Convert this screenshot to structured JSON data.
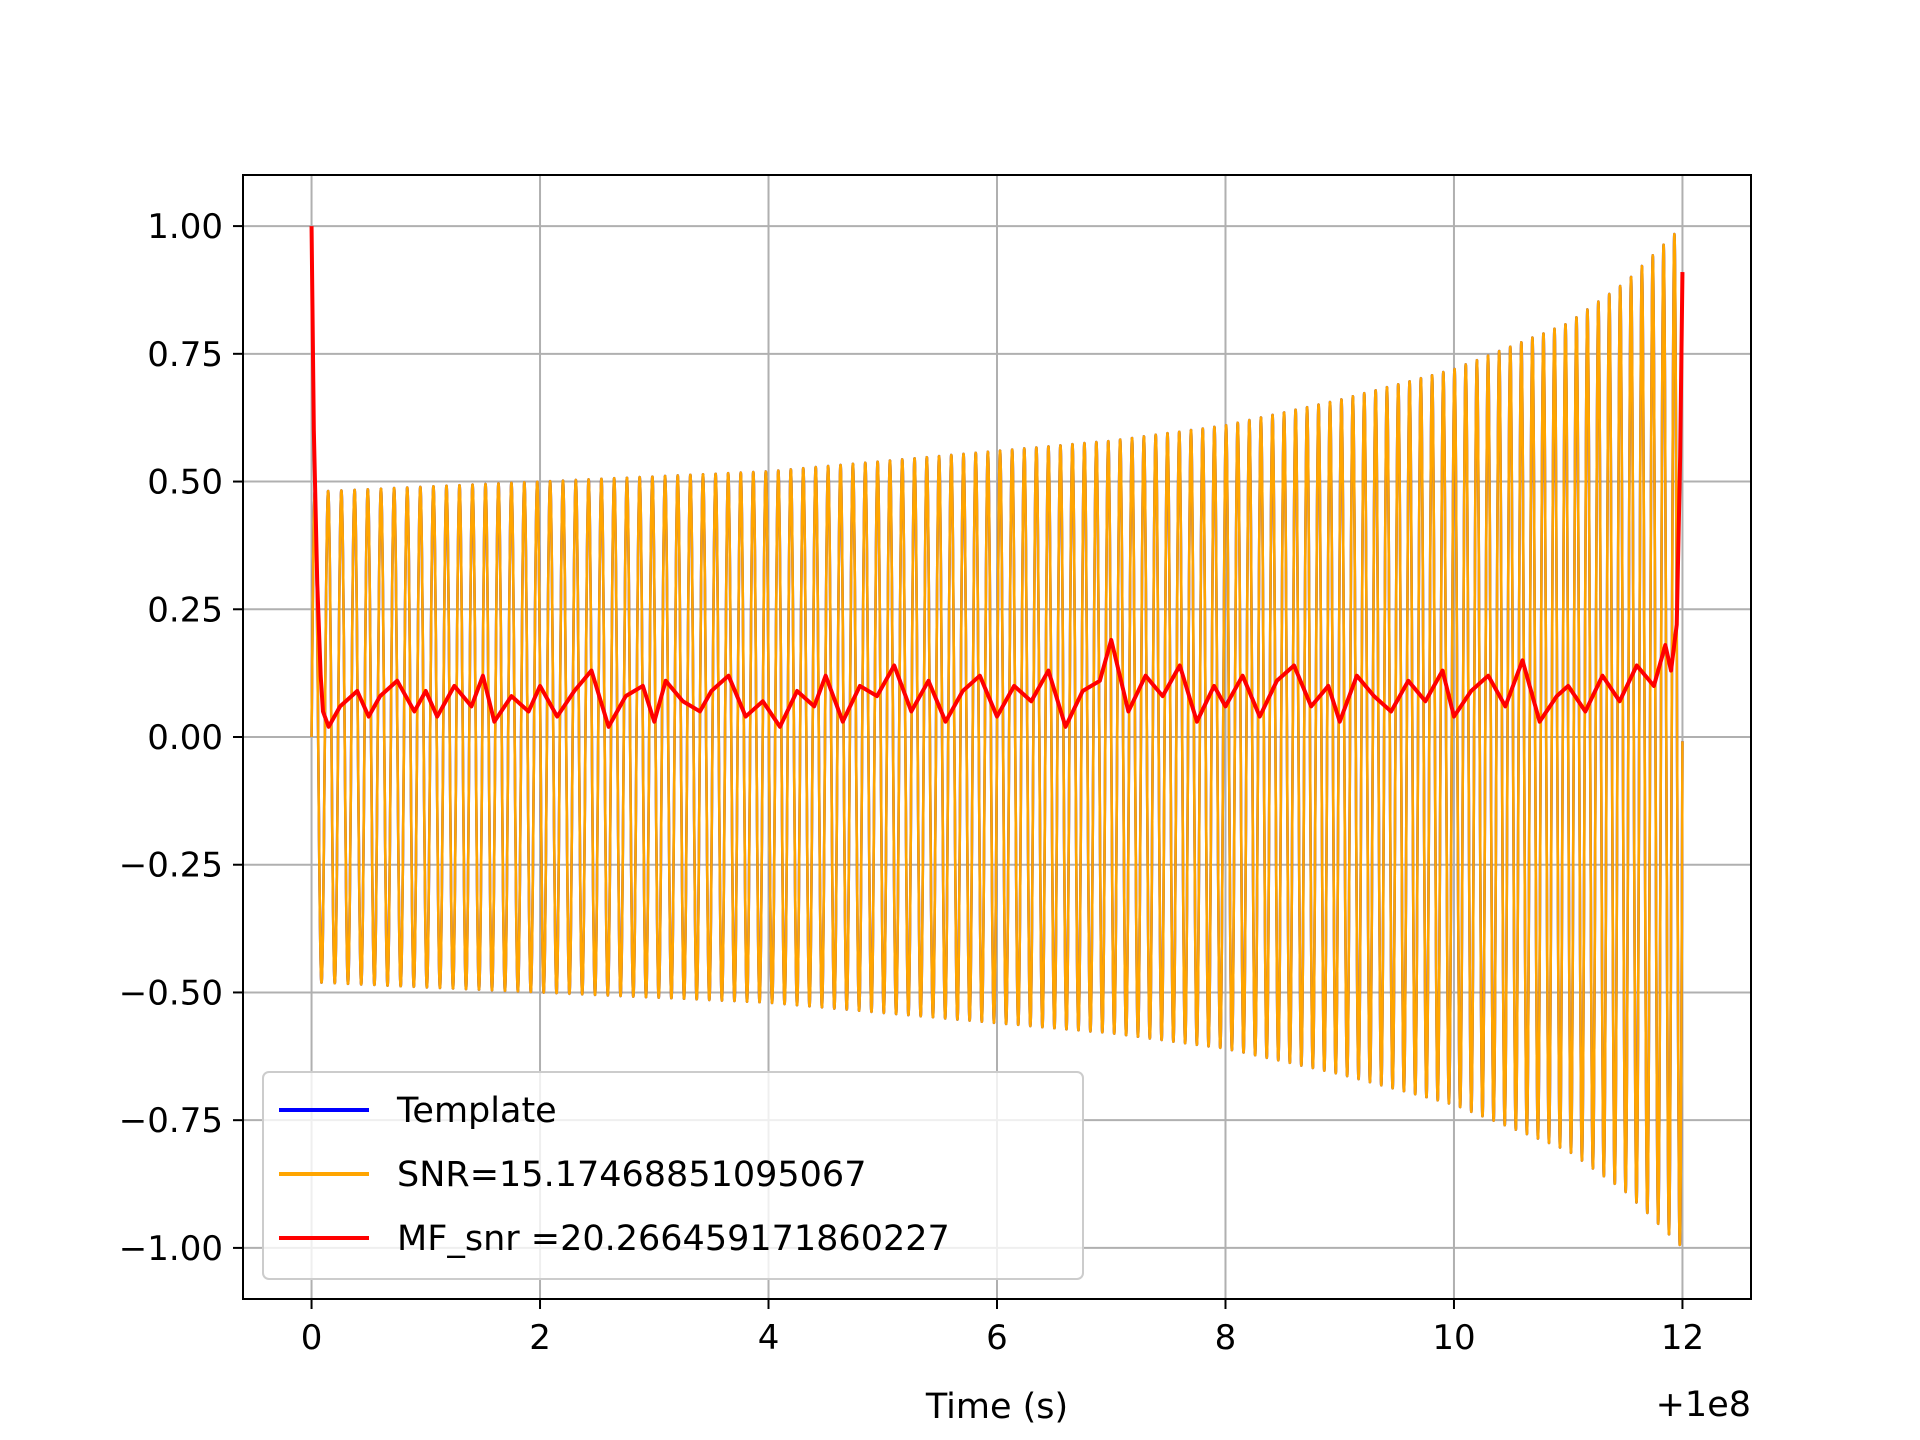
{
  "chart_data": {
    "type": "line",
    "title": "",
    "xlabel": "Time (s)",
    "ylabel": "",
    "x_offset_label": "+1e8",
    "xlim": [
      -0.6,
      12.6
    ],
    "ylim": [
      -1.1,
      1.1
    ],
    "grid": true,
    "legend_position": "lower-left",
    "x_ticks": [
      {
        "value": 0,
        "label": "0"
      },
      {
        "value": 2,
        "label": "2"
      },
      {
        "value": 4,
        "label": "4"
      },
      {
        "value": 6,
        "label": "6"
      },
      {
        "value": 8,
        "label": "8"
      },
      {
        "value": 10,
        "label": "10"
      },
      {
        "value": 12,
        "label": "12"
      }
    ],
    "y_ticks": [
      {
        "value": 1.0,
        "label": "1.00"
      },
      {
        "value": 0.75,
        "label": "0.75"
      },
      {
        "value": 0.5,
        "label": "0.50"
      },
      {
        "value": 0.25,
        "label": "0.25"
      },
      {
        "value": 0.0,
        "label": "0.00"
      },
      {
        "value": -0.25,
        "label": "−0.25"
      },
      {
        "value": -0.5,
        "label": "−0.50"
      },
      {
        "value": -0.75,
        "label": "−0.75"
      },
      {
        "value": -1.0,
        "label": "−1.00"
      }
    ],
    "series": [
      {
        "name": "Template",
        "color": "#0000ff",
        "kind": "chirp",
        "t_start": 0.0,
        "t_end": 12.0,
        "amplitude_envelope": {
          "t": [
            0,
            1,
            2,
            3,
            4,
            5,
            6,
            7,
            8,
            9,
            10,
            11,
            11.5,
            12.0
          ],
          "a": [
            0.48,
            0.49,
            0.5,
            0.51,
            0.52,
            0.54,
            0.56,
            0.58,
            0.61,
            0.66,
            0.72,
            0.81,
            0.89,
            1.0
          ]
        },
        "cycles_per_second": [
          {
            "t": 0,
            "f": 8.6
          },
          {
            "t": 6,
            "f": 9.4
          },
          {
            "t": 12,
            "f": 10.6
          }
        ]
      },
      {
        "name": "SNR=15.17468851095067",
        "color": "#ffa500",
        "kind": "chirp",
        "t_start": 0.0,
        "t_end": 12.0,
        "amplitude_envelope": {
          "t": [
            0,
            1,
            2,
            3,
            4,
            5,
            6,
            7,
            8,
            9,
            10,
            11,
            11.5,
            12.0
          ],
          "a": [
            0.48,
            0.49,
            0.5,
            0.51,
            0.52,
            0.54,
            0.56,
            0.58,
            0.61,
            0.66,
            0.72,
            0.81,
            0.89,
            1.0
          ]
        },
        "cycles_per_second": [
          {
            "t": 0,
            "f": 8.6
          },
          {
            "t": 6,
            "f": 9.4
          },
          {
            "t": 12,
            "f": 10.6
          }
        ]
      },
      {
        "name": "MF_snr =20.266459171860227",
        "color": "#ff0000",
        "kind": "line",
        "x": [
          0.0,
          0.02,
          0.05,
          0.08,
          0.1,
          0.15,
          0.25,
          0.4,
          0.5,
          0.6,
          0.75,
          0.9,
          1.0,
          1.1,
          1.25,
          1.4,
          1.5,
          1.6,
          1.75,
          1.9,
          2.0,
          2.15,
          2.3,
          2.45,
          2.6,
          2.75,
          2.9,
          3.0,
          3.1,
          3.25,
          3.4,
          3.5,
          3.65,
          3.8,
          3.95,
          4.1,
          4.25,
          4.4,
          4.5,
          4.65,
          4.8,
          4.95,
          5.1,
          5.25,
          5.4,
          5.55,
          5.7,
          5.85,
          6.0,
          6.15,
          6.3,
          6.45,
          6.6,
          6.75,
          6.9,
          7.0,
          7.15,
          7.3,
          7.45,
          7.6,
          7.75,
          7.9,
          8.0,
          8.15,
          8.3,
          8.45,
          8.6,
          8.75,
          8.9,
          9.0,
          9.15,
          9.3,
          9.45,
          9.6,
          9.75,
          9.9,
          10.0,
          10.15,
          10.3,
          10.45,
          10.6,
          10.75,
          10.9,
          11.0,
          11.15,
          11.3,
          11.45,
          11.6,
          11.75,
          11.85,
          11.9,
          11.95,
          11.98,
          12.0
        ],
        "y": [
          1.0,
          0.6,
          0.3,
          0.12,
          0.05,
          0.02,
          0.06,
          0.09,
          0.04,
          0.08,
          0.11,
          0.05,
          0.09,
          0.04,
          0.1,
          0.06,
          0.12,
          0.03,
          0.08,
          0.05,
          0.1,
          0.04,
          0.09,
          0.13,
          0.02,
          0.08,
          0.1,
          0.03,
          0.11,
          0.07,
          0.05,
          0.09,
          0.12,
          0.04,
          0.07,
          0.02,
          0.09,
          0.06,
          0.12,
          0.03,
          0.1,
          0.08,
          0.14,
          0.05,
          0.11,
          0.03,
          0.09,
          0.12,
          0.04,
          0.1,
          0.07,
          0.13,
          0.02,
          0.09,
          0.11,
          0.19,
          0.05,
          0.12,
          0.08,
          0.14,
          0.03,
          0.1,
          0.06,
          0.12,
          0.04,
          0.11,
          0.14,
          0.06,
          0.1,
          0.03,
          0.12,
          0.08,
          0.05,
          0.11,
          0.07,
          0.13,
          0.04,
          0.09,
          0.12,
          0.06,
          0.15,
          0.03,
          0.08,
          0.1,
          0.05,
          0.12,
          0.07,
          0.14,
          0.1,
          0.18,
          0.13,
          0.22,
          0.55,
          0.91
        ]
      }
    ]
  }
}
